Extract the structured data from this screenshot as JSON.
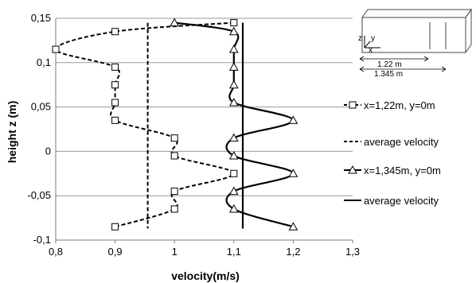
{
  "chart_data": {
    "type": "line",
    "title": "",
    "xlabel": "velocity(m/s)",
    "ylabel": "height z (m)",
    "xlim": [
      0.8,
      1.3
    ],
    "ylim": [
      -0.1,
      0.15
    ],
    "x_ticks": [
      "0,8",
      "0,9",
      "1",
      "1,1",
      "1,2",
      "1,3"
    ],
    "y_ticks": [
      "-0,1",
      "-0,05",
      "0",
      "0,05",
      "0,1",
      "0,15"
    ],
    "grid": "horizontal",
    "legend_position": "right",
    "series": [
      {
        "name": "x=1,22m, y=0m",
        "style": "dashed-square",
        "color": "#000000",
        "points": [
          [
            1.1,
            0.145
          ],
          [
            0.9,
            0.135
          ],
          [
            0.8,
            0.115
          ],
          [
            0.9,
            0.095
          ],
          [
            0.9,
            0.075
          ],
          [
            0.9,
            0.055
          ],
          [
            0.9,
            0.035
          ],
          [
            1.0,
            0.015
          ],
          [
            1.0,
            -0.005
          ],
          [
            1.1,
            -0.025
          ],
          [
            1.0,
            -0.045
          ],
          [
            1.0,
            -0.065
          ],
          [
            0.9,
            -0.085
          ]
        ]
      },
      {
        "name": "average velocity",
        "style": "dashed",
        "color": "#000000",
        "points": [
          [
            0.955,
            0.145
          ],
          [
            0.955,
            -0.087
          ]
        ]
      },
      {
        "name": "x=1,345m, y=0m",
        "style": "solid-triangle",
        "color": "#000000",
        "points": [
          [
            1.0,
            0.145
          ],
          [
            1.1,
            0.135
          ],
          [
            1.1,
            0.115
          ],
          [
            1.1,
            0.095
          ],
          [
            1.1,
            0.075
          ],
          [
            1.1,
            0.055
          ],
          [
            1.2,
            0.035
          ],
          [
            1.1,
            0.015
          ],
          [
            1.1,
            -0.005
          ],
          [
            1.2,
            -0.025
          ],
          [
            1.1,
            -0.045
          ],
          [
            1.1,
            -0.065
          ],
          [
            1.2,
            -0.085
          ]
        ]
      },
      {
        "name": "average velocity",
        "style": "solid",
        "color": "#000000",
        "points": [
          [
            1.115,
            0.145
          ],
          [
            1.115,
            -0.087
          ]
        ]
      }
    ],
    "inset": {
      "axis_z": "z",
      "axis_y": "y",
      "axis_x": "x",
      "dim1": "1.22 m",
      "dim2": "1.345 m"
    }
  }
}
